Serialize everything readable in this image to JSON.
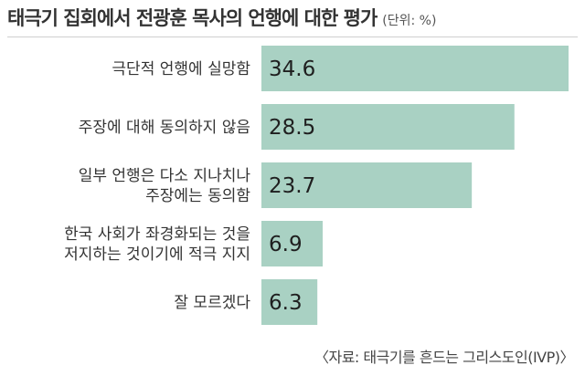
{
  "header": {
    "title": "태극기 집회에서 전광훈 목사의 언행에 대한 평가",
    "unit": "(단위: %)"
  },
  "source": "〈자료: 태극기를 흔드는 그리스도인(IVP)〉",
  "colors": {
    "bar": "#a9d1c3"
  },
  "chart_data": {
    "type": "bar",
    "orientation": "horizontal",
    "categories": [
      [
        "극단적 언행에 실망함"
      ],
      [
        "주장에 대해 동의하지 않음"
      ],
      [
        "일부 언행은 다소 지나치나",
        "주장에는 동의함"
      ],
      [
        "한국 사회가 좌경화되는 것을",
        "저지하는 것이기에 적극 지지"
      ],
      [
        "잘 모르겠다"
      ]
    ],
    "values": [
      34.6,
      28.5,
      23.7,
      6.9,
      6.3
    ],
    "value_labels": [
      "34.6",
      "28.5",
      "23.7",
      "6.9",
      "6.3"
    ],
    "title": "태극기 집회에서 전광훈 목사의 언행에 대한 평가",
    "xlabel": "",
    "ylabel": "",
    "xlim": [
      0,
      34.6
    ],
    "grid": false
  }
}
